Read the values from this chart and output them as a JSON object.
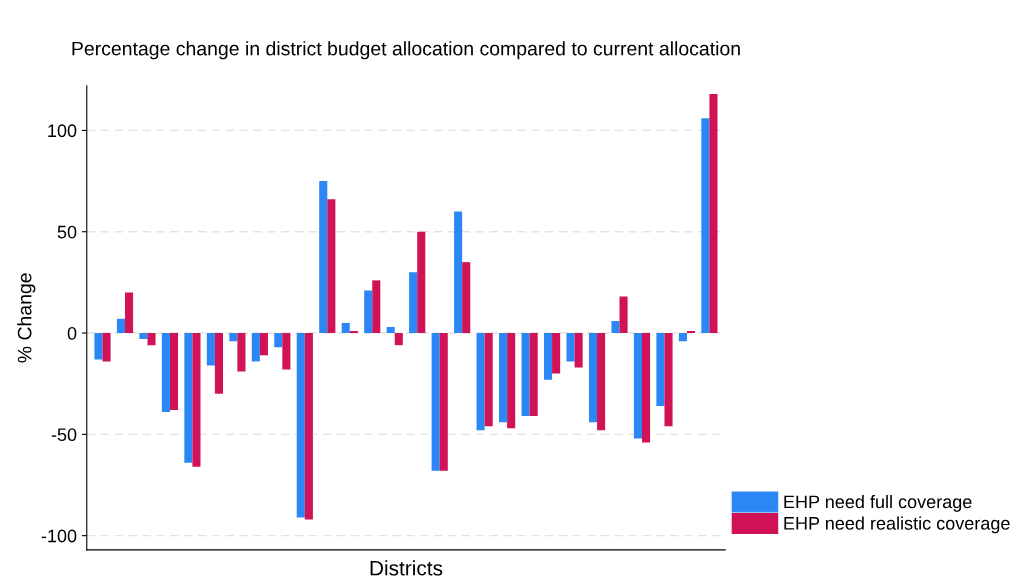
{
  "chart_data": {
    "type": "bar",
    "title": "Percentage change in district budget allocation compared to current allocation",
    "xlabel": "Districts",
    "ylabel": "% Change",
    "categories": [
      null,
      null,
      null,
      null,
      null,
      null,
      null,
      null,
      null,
      null,
      null,
      null,
      null,
      null,
      null,
      null,
      null,
      null,
      null,
      null,
      null,
      null,
      null,
      null,
      null,
      null,
      null,
      null
    ],
    "series": [
      {
        "name": "EHP need full coverage",
        "color": "#2a87f5",
        "values": [
          -13,
          7,
          -3,
          -39,
          -64,
          -16,
          -4,
          -14,
          -7,
          -91,
          75,
          5,
          21,
          3,
          30,
          -68,
          60,
          -48,
          -44,
          -41,
          -23,
          -14,
          -44,
          6,
          -52,
          -36,
          -4,
          106
        ]
      },
      {
        "name": "EHP need realistic coverage",
        "color": "#d01256",
        "values": [
          -14,
          20,
          -6,
          -38,
          -66,
          -30,
          -19,
          -11,
          -18,
          -92,
          66,
          1,
          26,
          -6,
          50,
          -68,
          35,
          -46,
          -47,
          -41,
          -20,
          -17,
          -48,
          18,
          -54,
          -46,
          1,
          118
        ]
      }
    ],
    "ylim": [
      -107,
      122
    ],
    "yticks": [
      -100,
      -50,
      0,
      50,
      100
    ],
    "grid": "y",
    "legend": "bottom right"
  }
}
